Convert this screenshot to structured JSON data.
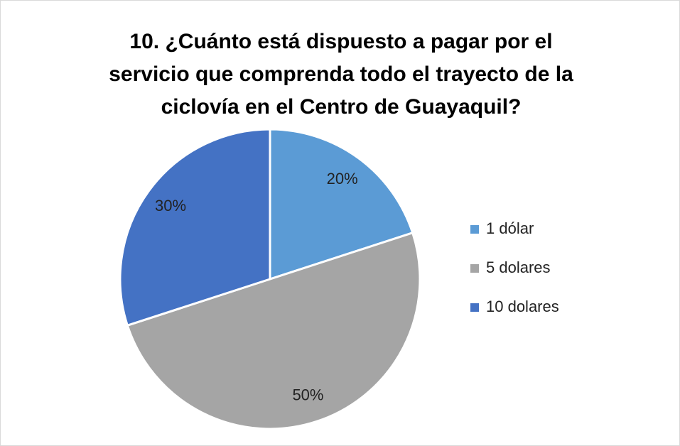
{
  "chart_data": {
    "type": "pie",
    "title": "10. ¿Cuánto está dispuesto a pagar por el servicio que comprenda todo el trayecto de la ciclovía en el Centro de Guayaquil?",
    "categories": [
      "1 dólar",
      "5 dolares",
      "10 dolares"
    ],
    "values": [
      20,
      50,
      30
    ],
    "value_labels": [
      "20%",
      "50%",
      "30%"
    ],
    "colors": [
      "#5b9bd5",
      "#a5a5a5",
      "#4472c4"
    ],
    "legend": "right"
  }
}
